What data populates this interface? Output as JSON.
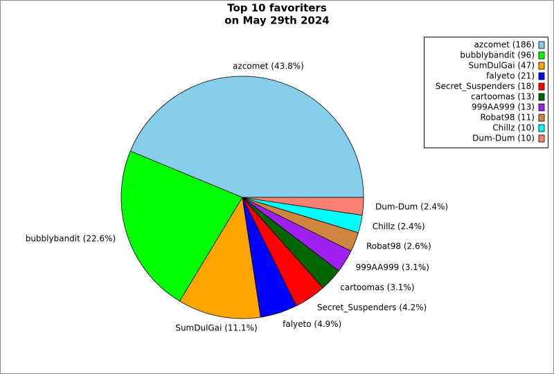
{
  "chart_data": {
    "type": "pie",
    "title": [
      "Top 10 favoriters",
      "on May 29th 2024"
    ],
    "categories": [
      "azcomet",
      "bubblybandit",
      "SumDulGai",
      "falyeto",
      "Secret_Suspenders",
      "cartoomas",
      "999AA999",
      "Robat98",
      "Chillz",
      "Dum-Dum"
    ],
    "values": [
      186,
      96,
      47,
      21,
      18,
      13,
      13,
      11,
      10,
      10
    ],
    "slice_labels": [
      "azcomet (43.8%)",
      "bubblybandit (22.6%)",
      "SumDulGai (11.1%)",
      "falyeto (4.9%)",
      "Secret_Suspenders (4.2%)",
      "cartoomas (3.1%)",
      "999AA999 (3.1%)",
      "Robat98 (2.6%)",
      "Chillz (2.4%)",
      "Dum-Dum (2.4%)"
    ],
    "legend_labels": [
      "azcomet (186)",
      "bubblybandit (96)",
      "SumDulGai (47)",
      "falyeto (21)",
      "Secret_Suspenders (18)",
      "cartoomas (13)",
      "999AA999 (13)",
      "Robat98 (11)",
      "Chillz (10)",
      "Dum-Dum (10)"
    ],
    "colors": [
      "#87ceeb",
      "#00ff00",
      "#ffa500",
      "#0000ff",
      "#ff0000",
      "#006400",
      "#a020f0",
      "#cd853f",
      "#00ffff",
      "#fa8072"
    ],
    "legend": "upper right"
  }
}
